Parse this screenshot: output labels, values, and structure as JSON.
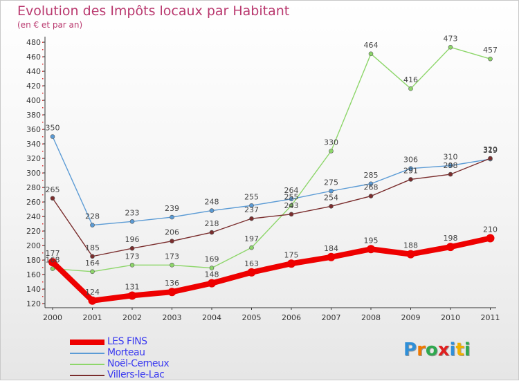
{
  "title": "Evolution des Impôts locaux par Habitant",
  "subtitle": "(en € et par an)",
  "logo": {
    "letters": [
      "P",
      "r",
      "o",
      "x",
      "i",
      "t",
      "i"
    ],
    "colors": [
      "#2f8fd8",
      "#f07800",
      "#2fa84f",
      "#e02020",
      "#2f8fd8",
      "#f0b000",
      "#2fa84f"
    ]
  },
  "chart_data": {
    "type": "line",
    "x": [
      "2000",
      "2001",
      "2002",
      "2003",
      "2004",
      "2005",
      "2006",
      "2007",
      "2008",
      "2009",
      "2010",
      "2011"
    ],
    "ylim": [
      120,
      480
    ],
    "yticks": [
      120,
      140,
      160,
      180,
      200,
      220,
      240,
      260,
      280,
      300,
      320,
      340,
      360,
      380,
      400,
      420,
      440,
      460,
      480
    ],
    "legend_position": "bottom-left",
    "grid": false,
    "series": [
      {
        "name": "LES FINS",
        "color": "#ee0000",
        "values": [
          177,
          124,
          131,
          136,
          148,
          163,
          175,
          184,
          195,
          188,
          198,
          210
        ]
      },
      {
        "name": "Morteau",
        "color": "#5b9bd5",
        "values": [
          350,
          228,
          233,
          239,
          248,
          255,
          264,
          275,
          285,
          306,
          310,
          319
        ]
      },
      {
        "name": "Noël-Cerneux",
        "color": "#8dd66a",
        "values": [
          168,
          164,
          173,
          173,
          169,
          197,
          255,
          330,
          464,
          416,
          473,
          457
        ]
      },
      {
        "name": "Villers-le-Lac",
        "color": "#7a2d2d",
        "values": [
          265,
          185,
          196,
          206,
          218,
          237,
          243,
          254,
          268,
          291,
          298,
          320
        ]
      }
    ]
  }
}
